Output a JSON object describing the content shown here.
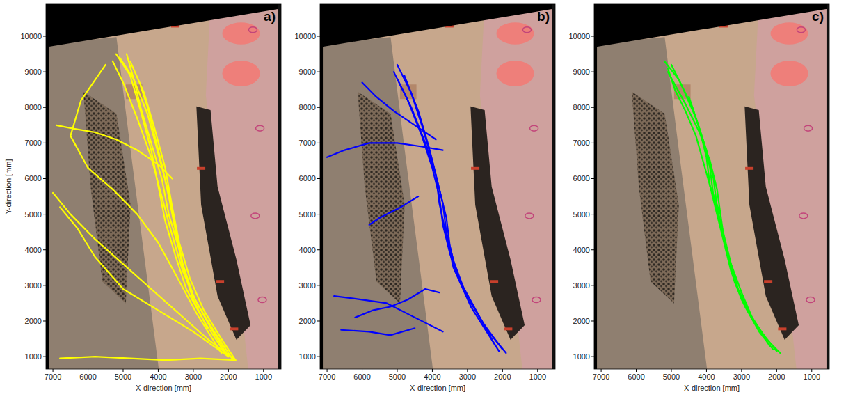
{
  "chart_data": [
    {
      "type": "line",
      "title": "a)",
      "x_label": "X-direction [mm]",
      "y_label": "Y-direction [mm]",
      "xlim": [
        7200,
        500
      ],
      "ylim": [
        650,
        10900
      ],
      "xticks": [
        7000,
        6000,
        5000,
        4000,
        3000,
        2000,
        1000
      ],
      "yticks": [
        1000,
        2000,
        3000,
        4000,
        5000,
        6000,
        7000,
        8000,
        9000,
        10000
      ],
      "series": [
        {
          "color": "#ffff00",
          "x": [
            1800,
            2200,
            2700,
            3100,
            3400,
            3600,
            3800,
            4100,
            4400,
            4800
          ],
          "values": [
            900,
            1500,
            2300,
            3200,
            4200,
            5200,
            6300,
            7400,
            8400,
            9300
          ]
        },
        {
          "color": "#ffff00",
          "x": [
            2000,
            2500,
            3000,
            3300,
            3500,
            3700,
            4000,
            4300,
            4700,
            5100
          ],
          "values": [
            1000,
            1800,
            2700,
            3600,
            4600,
            5600,
            6700,
            7800,
            8800,
            9400
          ]
        },
        {
          "color": "#ffff00",
          "x": [
            1900,
            2400,
            2900,
            3300,
            3600,
            3900,
            4200,
            4600,
            5000,
            5300
          ],
          "values": [
            950,
            1700,
            2500,
            3400,
            4400,
            5500,
            6600,
            7700,
            8700,
            9300
          ]
        },
        {
          "color": "#ffff00",
          "x": [
            2100,
            2700,
            3200,
            3500,
            3800,
            4000,
            4200,
            4500,
            4800,
            5200
          ],
          "values": [
            1100,
            2000,
            2900,
            3800,
            4800,
            5800,
            6800,
            7900,
            8900,
            9500
          ]
        },
        {
          "color": "#ffff00",
          "x": [
            2200,
            2900,
            3500,
            4000,
            4600,
            5300,
            6000,
            6500,
            6200,
            5500
          ],
          "values": [
            1100,
            2200,
            3300,
            4200,
            5000,
            5700,
            6300,
            7200,
            8200,
            9200
          ]
        },
        {
          "color": "#ffff00",
          "x": [
            1800,
            2600,
            3400,
            4200,
            5000,
            5800,
            6500,
            7000
          ],
          "values": [
            900,
            1500,
            2200,
            2900,
            3600,
            4300,
            5000,
            5600
          ]
        },
        {
          "color": "#ffff00",
          "x": [
            2000,
            3000,
            4000,
            5000,
            5800,
            6300,
            6800
          ],
          "values": [
            1000,
            1700,
            2300,
            2900,
            3800,
            4600,
            5200
          ]
        },
        {
          "color": "#ffff00",
          "x": [
            3600,
            4000,
            4600,
            5200,
            5800,
            6400,
            6900
          ],
          "values": [
            6000,
            6400,
            6800,
            7100,
            7300,
            7400,
            7500
          ]
        },
        {
          "color": "#ffff00",
          "x": [
            1800,
            2800,
            3800,
            4800,
            5800,
            6800
          ],
          "values": [
            900,
            950,
            900,
            950,
            1000,
            950
          ]
        },
        {
          "color": "#ffff00",
          "x": [
            3400,
            3700,
            3900,
            4200,
            4500,
            4700,
            4900
          ],
          "values": [
            4000,
            5000,
            6000,
            7000,
            8000,
            8800,
            9500
          ]
        },
        {
          "color": "#ffff00",
          "x": [
            2600,
            3000,
            3300,
            3500,
            3700,
            3900,
            4100,
            4300,
            4500
          ],
          "values": [
            1800,
            2600,
            3500,
            4500,
            5500,
            6400,
            7200,
            8000,
            8600
          ]
        }
      ]
    },
    {
      "type": "line",
      "title": "b)",
      "x_label": "X-direction [mm]",
      "xlim": [
        7200,
        500
      ],
      "ylim": [
        650,
        10900
      ],
      "xticks": [
        7000,
        6000,
        5000,
        4000,
        3000,
        2000,
        1000
      ],
      "yticks": [
        1000,
        2000,
        3000,
        4000,
        5000,
        6000,
        7000,
        8000,
        9000,
        10000
      ],
      "series": [
        {
          "color": "#0000ff",
          "x": [
            1900,
            2400,
            2900,
            3300,
            3500,
            3600,
            3800,
            4000,
            4300,
            4600,
            5000
          ],
          "values": [
            1100,
            1700,
            2500,
            3300,
            4100,
            4900,
            5700,
            6500,
            7500,
            8400,
            9200
          ]
        },
        {
          "color": "#0000ff",
          "x": [
            2000,
            2600,
            3100,
            3400,
            3600,
            3700,
            3900,
            4100,
            4400,
            4800
          ],
          "values": [
            1200,
            2000,
            2900,
            3700,
            4500,
            5300,
            6100,
            6900,
            7900,
            8900
          ]
        },
        {
          "color": "#0000ff",
          "x": [
            2200,
            2700,
            3200,
            3500,
            3700,
            3800,
            4000,
            4300,
            4700,
            5100
          ],
          "values": [
            1300,
            2200,
            3100,
            3900,
            4700,
            5500,
            6300,
            7200,
            8200,
            9000
          ]
        },
        {
          "color": "#0000ff",
          "x": [
            2100,
            2900,
            3400,
            3600,
            3800,
            3900,
            4200,
            4600,
            5000
          ],
          "values": [
            1150,
            2400,
            3500,
            4400,
            5300,
            6100,
            7000,
            8000,
            8800
          ]
        },
        {
          "color": "#0000ff",
          "x": [
            3700,
            4300,
            5000,
            5800,
            6500,
            7000
          ],
          "values": [
            6800,
            6900,
            7000,
            7000,
            6800,
            6600
          ]
        },
        {
          "color": "#0000ff",
          "x": [
            3900,
            4500,
            5100,
            5600,
            6000
          ],
          "values": [
            7100,
            7500,
            7900,
            8300,
            8700
          ]
        },
        {
          "color": "#0000ff",
          "x": [
            3700,
            4500,
            5300,
            6000,
            6800
          ],
          "values": [
            1700,
            2100,
            2500,
            2600,
            2700
          ]
        },
        {
          "color": "#0000ff",
          "x": [
            4500,
            5200,
            5800,
            6600
          ],
          "values": [
            1800,
            1600,
            1700,
            1750
          ]
        },
        {
          "color": "#0000ff",
          "x": [
            3800,
            4200,
            4700,
            5200,
            5700,
            6200
          ],
          "values": [
            2800,
            2900,
            2600,
            2400,
            2300,
            2100
          ]
        },
        {
          "color": "#0000ff",
          "x": [
            4400,
            4900,
            5500,
            5800
          ],
          "values": [
            5500,
            5200,
            4900,
            4700
          ]
        }
      ]
    },
    {
      "type": "line",
      "title": "c)",
      "x_label": "X-direction [mm]",
      "xlim": [
        7200,
        500
      ],
      "ylim": [
        650,
        10900
      ],
      "xticks": [
        7000,
        6000,
        5000,
        4000,
        3000,
        2000,
        1000
      ],
      "yticks": [
        1000,
        2000,
        3000,
        4000,
        5000,
        6000,
        7000,
        8000,
        9000,
        10000
      ],
      "series": [
        {
          "color": "#00ff00",
          "x": [
            1900,
            2300,
            2700,
            3000,
            3300,
            3500,
            3700,
            3800,
            4000,
            4300,
            4700,
            5000
          ],
          "values": [
            1100,
            1500,
            2100,
            2800,
            3600,
            4400,
            5200,
            6000,
            6800,
            7700,
            8600,
            9200
          ]
        },
        {
          "color": "#00ff00",
          "x": [
            2100,
            2500,
            2900,
            3200,
            3400,
            3600,
            3800,
            3900,
            4100,
            4400,
            4800,
            5200
          ],
          "values": [
            1200,
            1700,
            2400,
            3100,
            3900,
            4700,
            5500,
            6300,
            7100,
            8000,
            8800,
            9300
          ]
        },
        {
          "color": "#00ff00",
          "x": [
            2000,
            2600,
            3000,
            3300,
            3500,
            3700,
            3900,
            4000,
            4200,
            4500
          ],
          "values": [
            1150,
            1900,
            2600,
            3400,
            4200,
            5000,
            5800,
            6600,
            7400,
            8300
          ]
        },
        {
          "color": "#00ff00",
          "x": [
            2200,
            2700,
            3100,
            3300,
            3500,
            3600,
            3700,
            3900,
            4200,
            4600,
            5100
          ],
          "values": [
            1300,
            2100,
            2900,
            3600,
            4300,
            5000,
            5700,
            6500,
            7300,
            8100,
            9000
          ]
        },
        {
          "color": "#00ff00",
          "x": [
            3600,
            3900,
            4100,
            4300,
            4600,
            4900,
            5100
          ],
          "values": [
            5000,
            5800,
            6500,
            7200,
            7900,
            8500,
            9100
          ]
        }
      ]
    }
  ]
}
